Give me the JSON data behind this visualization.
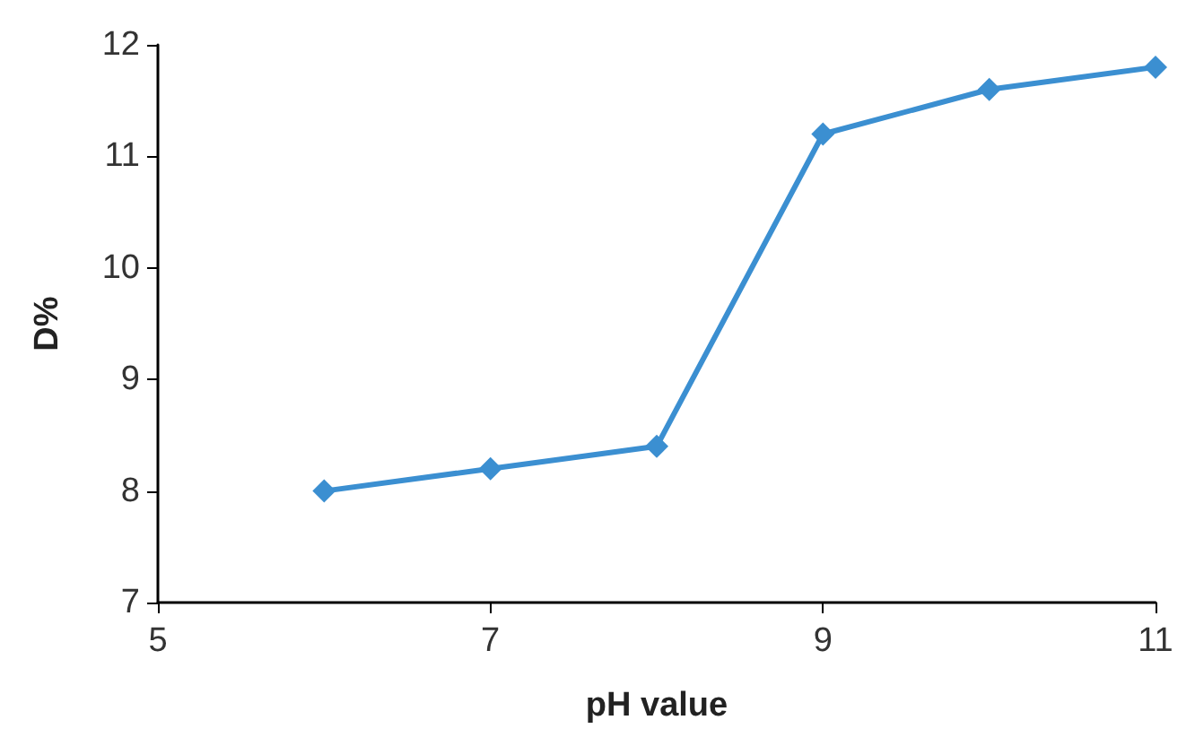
{
  "chart_data": {
    "type": "line",
    "xlabel": "pH value",
    "ylabel": "D%",
    "x": [
      6,
      7,
      8,
      9,
      10,
      11
    ],
    "series": [
      {
        "color": "#3b8fd1",
        "values": [
          8.0,
          8.2,
          8.4,
          11.2,
          11.6,
          11.8
        ]
      }
    ],
    "xlim": [
      5,
      11
    ],
    "xticks": [
      5,
      7,
      9,
      11
    ],
    "ylim": [
      7,
      12
    ],
    "yticks": [
      7,
      8,
      9,
      10,
      11,
      12
    ],
    "grid": false,
    "marker": "diamond",
    "line_style": "solid"
  }
}
